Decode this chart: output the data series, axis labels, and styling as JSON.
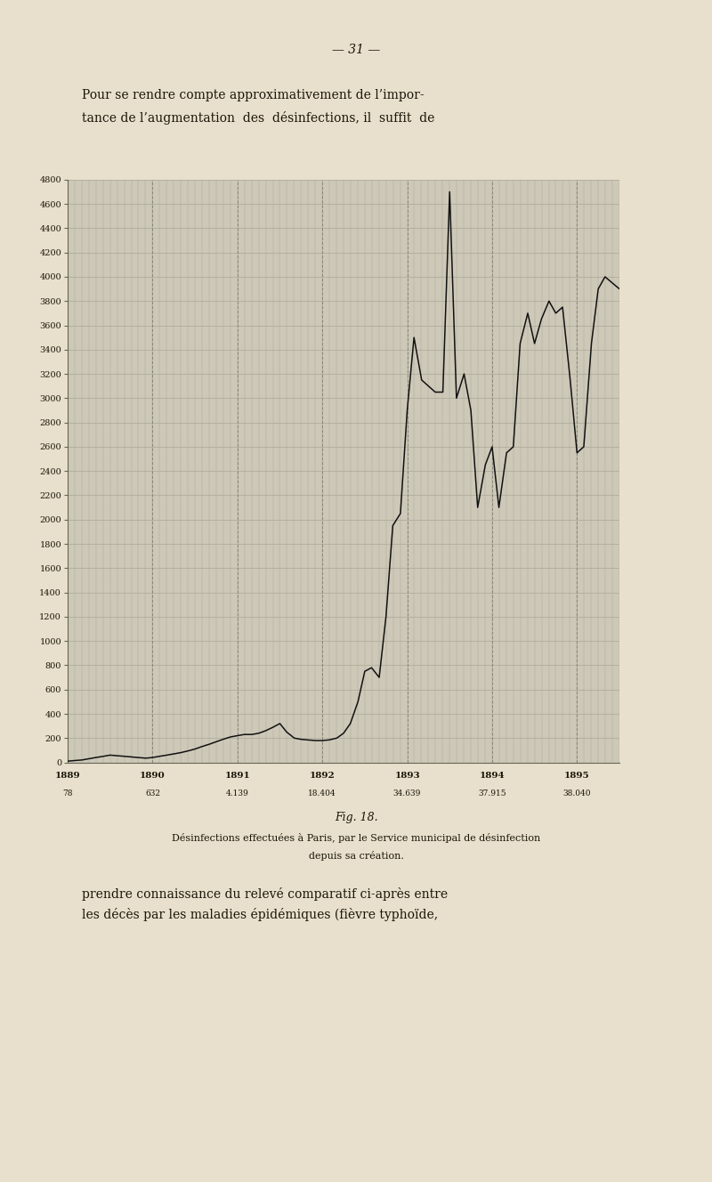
{
  "title_page": "— 31 —",
  "intro_text1": "Pour se rendre compte approximativement de l’impor-",
  "intro_text2": "tance de l’augmentation  des  désinfections, il  suffit  de",
  "fig_label": "Fig. 18.",
  "caption_line1": "Désinfections effectuées à Paris, par le Service municipal de désinfection",
  "caption_line2": "depuis sa création.",
  "footer_text1": "prendre connaissance du relevé comparatif ci-après entre",
  "footer_text2": "les décès par les maladies épidémiques (fièvre typhoïde,",
  "x_label_years": [
    "1889",
    "1890",
    "1891",
    "1892",
    "1893",
    "1894",
    "1895"
  ],
  "x_label_counts": [
    "78",
    "632",
    "4.139",
    "18.404",
    "34.639",
    "37.915",
    "38.040"
  ],
  "page_bg": "#e8e0cc",
  "chart_bg": "#cdc8b8",
  "grid_color": "#aaa898",
  "dashed_color": "#888878",
  "line_color": "#111111",
  "text_color": "#1a1508",
  "chart_data_x": [
    0.0,
    0.08,
    0.17,
    0.25,
    0.33,
    0.42,
    0.5,
    0.58,
    0.67,
    0.75,
    0.83,
    0.92,
    1.0,
    1.08,
    1.17,
    1.25,
    1.33,
    1.42,
    1.5,
    1.58,
    1.67,
    1.75,
    1.83,
    1.92,
    2.0,
    2.08,
    2.17,
    2.25,
    2.33,
    2.42,
    2.5,
    2.58,
    2.67,
    2.75,
    2.83,
    2.92,
    3.0,
    3.08,
    3.17,
    3.25,
    3.33,
    3.42,
    3.5,
    3.58,
    3.67,
    3.75,
    3.83,
    3.92,
    4.0,
    4.08,
    4.17,
    4.25,
    4.33,
    4.42,
    4.5,
    4.58,
    4.67,
    4.75,
    4.83,
    4.92,
    5.0,
    5.08,
    5.17,
    5.25,
    5.33,
    5.42,
    5.5,
    5.58,
    5.67,
    5.75,
    5.83,
    5.92,
    6.0,
    6.08,
    6.17,
    6.25,
    6.33,
    6.5
  ],
  "chart_data_y": [
    10,
    15,
    20,
    30,
    40,
    50,
    60,
    55,
    50,
    45,
    40,
    35,
    40,
    50,
    60,
    70,
    80,
    95,
    110,
    130,
    150,
    170,
    190,
    210,
    220,
    230,
    230,
    240,
    260,
    290,
    320,
    250,
    200,
    190,
    185,
    180,
    180,
    185,
    200,
    240,
    320,
    500,
    750,
    780,
    700,
    1200,
    1950,
    2050,
    2900,
    3500,
    3150,
    3100,
    3050,
    3050,
    4700,
    3000,
    3200,
    2900,
    2100,
    2450,
    2600,
    2100,
    2550,
    2600,
    3450,
    3700,
    3450,
    3650,
    3800,
    3700,
    3750,
    3150,
    2550,
    2600,
    3450,
    3900,
    4000,
    3900
  ],
  "ylim": [
    0,
    4800
  ],
  "ytick_step": 200
}
